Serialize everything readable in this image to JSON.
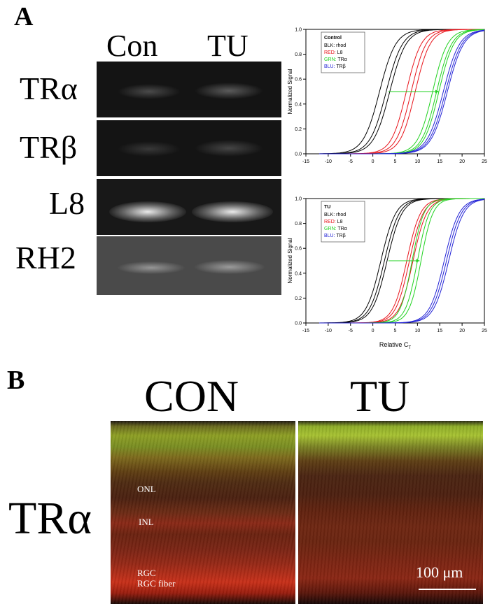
{
  "panel_a": {
    "label": "A",
    "gel": {
      "columns": [
        "Con",
        "TU"
      ],
      "rows": [
        {
          "label": "TRα",
          "intensity": 0.35
        },
        {
          "label": "TRβ",
          "intensity": 0.22
        },
        {
          "label": "L8",
          "intensity": 0.95
        },
        {
          "label": "RH2",
          "intensity": 0.4
        }
      ]
    }
  },
  "panel_b": {
    "label": "B",
    "columns": [
      "CON",
      "TU"
    ],
    "row_label": "TRα",
    "layer_labels": {
      "onl": "ONL",
      "inl": "INL",
      "rgc": "RGC",
      "rgc_fiber": "RGC fiber"
    },
    "scale_bar": "100 μm"
  },
  "chart_data": [
    {
      "type": "line",
      "title": "",
      "ylabel": "Normalized Signal",
      "xlabel": "",
      "xlim": [
        -15,
        25
      ],
      "ylim": [
        0,
        1.0
      ],
      "xticks": [
        "-15",
        "-10",
        "-5",
        "0",
        "5",
        "10",
        "15",
        "20",
        "25"
      ],
      "yticks": [
        "0.0",
        "0.2",
        "0.4",
        "0.6",
        "0.8",
        "1.0"
      ],
      "legend": {
        "title": "Control",
        "entries": [
          {
            "key": "BLK",
            "name": "rhod",
            "color": "#000000"
          },
          {
            "key": "RED",
            "name": "L8",
            "color": "#e8141b"
          },
          {
            "key": "GRN",
            "name": "TRα",
            "color": "#1fd21f"
          },
          {
            "key": "BLU",
            "name": "TRβ",
            "color": "#2323d6"
          }
        ],
        "position": "top-left"
      },
      "series": [
        {
          "name": "rhod",
          "color": "#000000",
          "midpoints": [
            1.5,
            3.0,
            3.8
          ],
          "slope": 0.55
        },
        {
          "name": "L8",
          "color": "#e8141b",
          "midpoints": [
            7.5,
            8.6,
            9.5
          ],
          "slope": 0.6
        },
        {
          "name": "TRα",
          "color": "#1fd21f",
          "midpoints": [
            13.4,
            14.3,
            14.8
          ],
          "slope": 0.6
        },
        {
          "name": "TRβ",
          "color": "#2323d6",
          "midpoints": [
            15.8,
            16.3,
            16.7
          ],
          "slope": 0.55
        }
      ],
      "arrow": {
        "x1": 3.5,
        "x2": 14.8,
        "y": 0.5,
        "color": "#1fd21f"
      }
    },
    {
      "type": "line",
      "title": "",
      "ylabel": "Normalized Signal",
      "xlabel": "Relative C",
      "xlabel_sub": "T",
      "xlim": [
        -15,
        25
      ],
      "ylim": [
        0,
        1.0
      ],
      "xticks": [
        "-15",
        "-10",
        "-5",
        "0",
        "5",
        "10",
        "15",
        "20",
        "25"
      ],
      "yticks": [
        "0.0",
        "0.2",
        "0.4",
        "0.6",
        "0.8",
        "1.0"
      ],
      "legend": {
        "title": "TU",
        "entries": [
          {
            "key": "BLK",
            "name": "rhod",
            "color": "#000000"
          },
          {
            "key": "RED",
            "name": "L8",
            "color": "#e8141b"
          },
          {
            "key": "GRN",
            "name": "TRα",
            "color": "#1fd21f"
          },
          {
            "key": "BLU",
            "name": "TRβ",
            "color": "#2323d6"
          }
        ],
        "position": "top-left"
      },
      "series": [
        {
          "name": "rhod",
          "color": "#000000",
          "midpoints": [
            1.8,
            2.6,
            3.2
          ],
          "slope": 0.6
        },
        {
          "name": "L8",
          "color": "#e8141b",
          "midpoints": [
            7.6,
            8.2,
            9.0
          ],
          "slope": 0.65
        },
        {
          "name": "TRα",
          "color": "#1fd21f",
          "midpoints": [
            8.8,
            10.0,
            10.8
          ],
          "slope": 0.75
        },
        {
          "name": "TRβ",
          "color": "#2323d6",
          "midpoints": [
            16.0,
            16.5,
            17.0
          ],
          "slope": 0.6
        }
      ],
      "arrow": {
        "x1": 3.5,
        "x2": 10.5,
        "y": 0.5,
        "color": "#1fd21f"
      }
    }
  ]
}
